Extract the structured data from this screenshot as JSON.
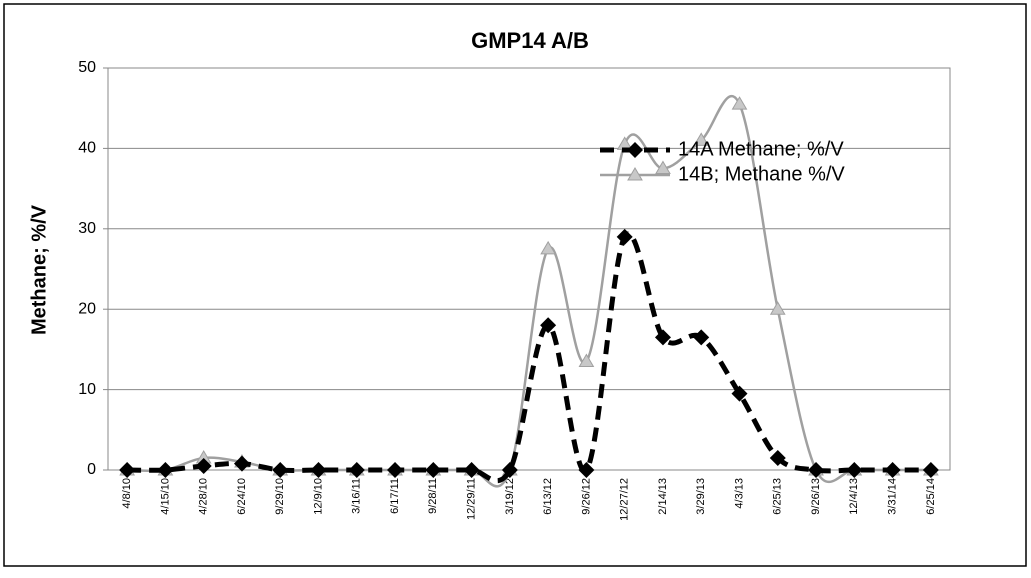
{
  "chart_data": {
    "type": "line",
    "title": "GMP14 A/B",
    "y_label": "Methane; %/V",
    "categories": [
      "4/8/10",
      "4/15/10",
      "4/28/10",
      "6/24/10",
      "9/29/10",
      "12/9/10",
      "3/16/11",
      "6/17/11",
      "9/28/11",
      "12/29/11",
      "3/19/12",
      "6/13/12",
      "9/26/12",
      "12/27/12",
      "2/14/13",
      "3/29/13",
      "4/3/13",
      "6/25/13",
      "9/26/13",
      "12/4/13",
      "3/31/14",
      "6/25/14"
    ],
    "series": [
      {
        "name": "14A Methane; %/V",
        "color": "#000000",
        "values": [
          0,
          0,
          0.5,
          0.8,
          0,
          0,
          0,
          0,
          0,
          0,
          0,
          18,
          0,
          29,
          16.5,
          16.5,
          9.5,
          1.5,
          0,
          0,
          0,
          0
        ]
      },
      {
        "name": "14B; Methane %/V",
        "color": "#a0a0a0",
        "values": [
          0,
          0,
          1.5,
          1,
          0,
          0,
          0,
          0,
          0,
          0,
          0,
          27.5,
          13.5,
          40.5,
          37.5,
          41,
          45.5,
          20,
          0,
          0,
          0,
          0
        ]
      }
    ],
    "ylim": [
      0,
      50
    ],
    "yticks": [
      0,
      10,
      20,
      30,
      40,
      50
    ],
    "grid": true,
    "legend": "upper right"
  }
}
